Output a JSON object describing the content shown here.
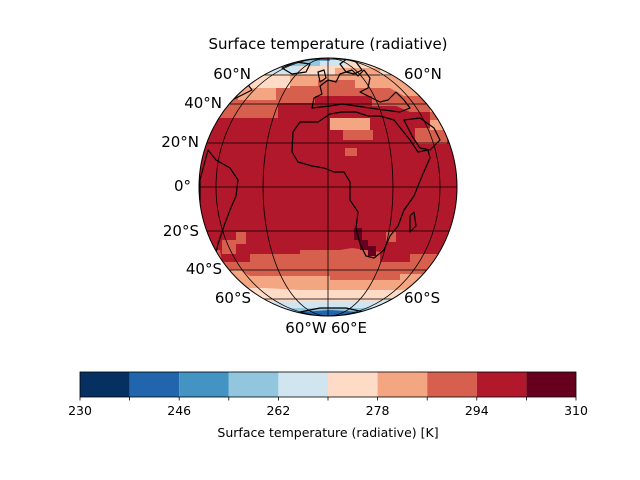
{
  "map": {
    "title": "Surface temperature (radiative)",
    "projection": "orthographic",
    "field": "surface temperature (radiative)",
    "units": "K",
    "lat_labels_left": [
      "60°N",
      "40°N",
      "20°N",
      "0°",
      "20°S",
      "40°S",
      "60°S"
    ],
    "lat_labels_right": [
      "60°N",
      "60°S"
    ],
    "lon_labels": [
      "60°W",
      "60°E"
    ],
    "ocean_color_note": "warm field dominant",
    "colors": {
      "coastline": "#000000",
      "gridline": "#000000"
    }
  },
  "colorbar": {
    "label": "Surface temperature (radiative) [K]",
    "min": 230,
    "max": 310,
    "levels": [
      230,
      238,
      246,
      254,
      262,
      270,
      278,
      286,
      294,
      302,
      310
    ],
    "tick_labels": [
      "230",
      "246",
      "262",
      "278",
      "294",
      "310"
    ],
    "colors": [
      "#053061",
      "#2166ac",
      "#4393c3",
      "#92c5de",
      "#d1e5f0",
      "#fddbc7",
      "#f4a582",
      "#d6604d",
      "#b2182b",
      "#67001f"
    ]
  }
}
